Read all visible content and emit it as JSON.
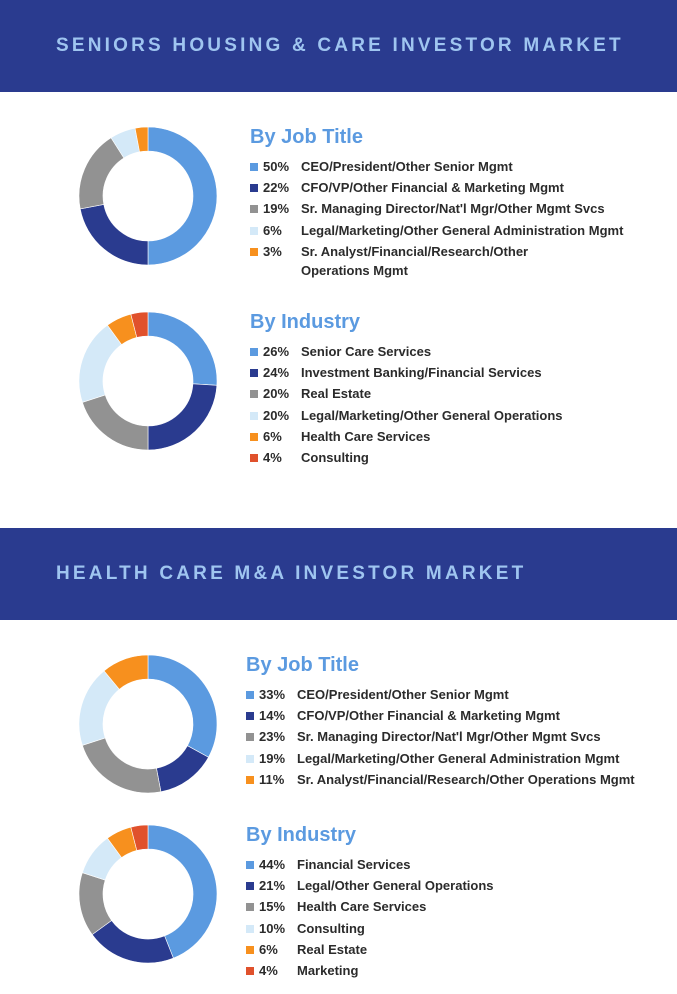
{
  "sections": [
    {
      "title": "SENIORS HOUSING & CARE INVESTOR MARKET",
      "charts": [
        {
          "title": "By Job Title",
          "items": [
            {
              "pct": "50%",
              "label": "CEO/President/Other Senior Mgmt"
            },
            {
              "pct": "22%",
              "label": "CFO/VP/Other Financial & Marketing Mgmt"
            },
            {
              "pct": "19%",
              "label": "Sr. Managing Director/Nat'l Mgr/Other Mgmt Svcs"
            },
            {
              "pct": "6%",
              "label": "Legal/Marketing/Other General Administration Mgmt"
            },
            {
              "pct": "3%",
              "label": "Sr. Analyst/Financial/Research/Other Operations Mgmt"
            }
          ]
        },
        {
          "title": "By Industry",
          "items": [
            {
              "pct": "26%",
              "label": "Senior Care Services"
            },
            {
              "pct": "24%",
              "label": "Investment Banking/Financial Services"
            },
            {
              "pct": "20%",
              "label": "Real Estate"
            },
            {
              "pct": "20%",
              "label": "Legal/Marketing/Other General Operations"
            },
            {
              "pct": "6%",
              "label": "Health Care Services"
            },
            {
              "pct": "4%",
              "label": "Consulting"
            }
          ]
        }
      ]
    },
    {
      "title": "HEALTH CARE M&A INVESTOR MARKET",
      "charts": [
        {
          "title": "By Job Title",
          "items": [
            {
              "pct": "33%",
              "label": "CEO/President/Other Senior Mgmt"
            },
            {
              "pct": "14%",
              "label": "CFO/VP/Other Financial & Marketing Mgmt"
            },
            {
              "pct": "23%",
              "label": "Sr. Managing Director/Nat'l Mgr/Other Mgmt Svcs"
            },
            {
              "pct": "19%",
              "label": "Legal/Marketing/Other General Administration Mgmt"
            },
            {
              "pct": "11%",
              "label": "Sr. Analyst/Financial/Research/Other Operations Mgmt"
            }
          ]
        },
        {
          "title": "By Industry",
          "items": [
            {
              "pct": "44%",
              "label": "Financial Services"
            },
            {
              "pct": "21%",
              "label": "Legal/Other General Operations"
            },
            {
              "pct": "15%",
              "label": "Health Care Services"
            },
            {
              "pct": "10%",
              "label": "Consulting"
            },
            {
              "pct": "6%",
              "label": "Real Estate"
            },
            {
              "pct": "4%",
              "label": "Marketing"
            }
          ]
        }
      ]
    }
  ],
  "colors": {
    "banner": "#2a3b8f",
    "banner_text": "#9fc5f0",
    "title_text": "#5b9ae0",
    "slices": [
      "#5b9ae0",
      "#2a3b8f",
      "#929292",
      "#d4e9f8",
      "#f7901e",
      "#e0512c"
    ]
  },
  "chart_data": [
    {
      "type": "pie",
      "categories": [
        "CEO/President/Other Senior Mgmt",
        "CFO/VP/Other Financial & Marketing Mgmt",
        "Sr. Managing Director/Nat'l Mgr/Other Mgmt Svcs",
        "Legal/Marketing/Other General Administration Mgmt",
        "Sr. Analyst/Financial/Research/Other Operations Mgmt"
      ],
      "values": [
        50,
        22,
        19,
        6,
        3
      ],
      "title": "By Job Title"
    },
    {
      "type": "pie",
      "categories": [
        "Senior Care Services",
        "Investment Banking/Financial Services",
        "Real Estate",
        "Legal/Marketing/Other General Operations",
        "Health Care Services",
        "Consulting"
      ],
      "values": [
        26,
        24,
        20,
        20,
        6,
        4
      ],
      "title": "By Industry"
    },
    {
      "type": "pie",
      "categories": [
        "CEO/President/Other Senior Mgmt",
        "CFO/VP/Other Financial & Marketing Mgmt",
        "Sr. Managing Director/Nat'l Mgr/Other Mgmt Svcs",
        "Legal/Marketing/Other General Administration Mgmt",
        "Sr. Analyst/Financial/Research/Other Operations Mgmt"
      ],
      "values": [
        33,
        14,
        23,
        19,
        11
      ],
      "title": "By Job Title"
    },
    {
      "type": "pie",
      "categories": [
        "Financial Services",
        "Legal/Other General Operations",
        "Health Care Services",
        "Consulting",
        "Real Estate",
        "Marketing"
      ],
      "values": [
        44,
        21,
        15,
        10,
        6,
        4
      ],
      "title": "By Industry"
    }
  ]
}
